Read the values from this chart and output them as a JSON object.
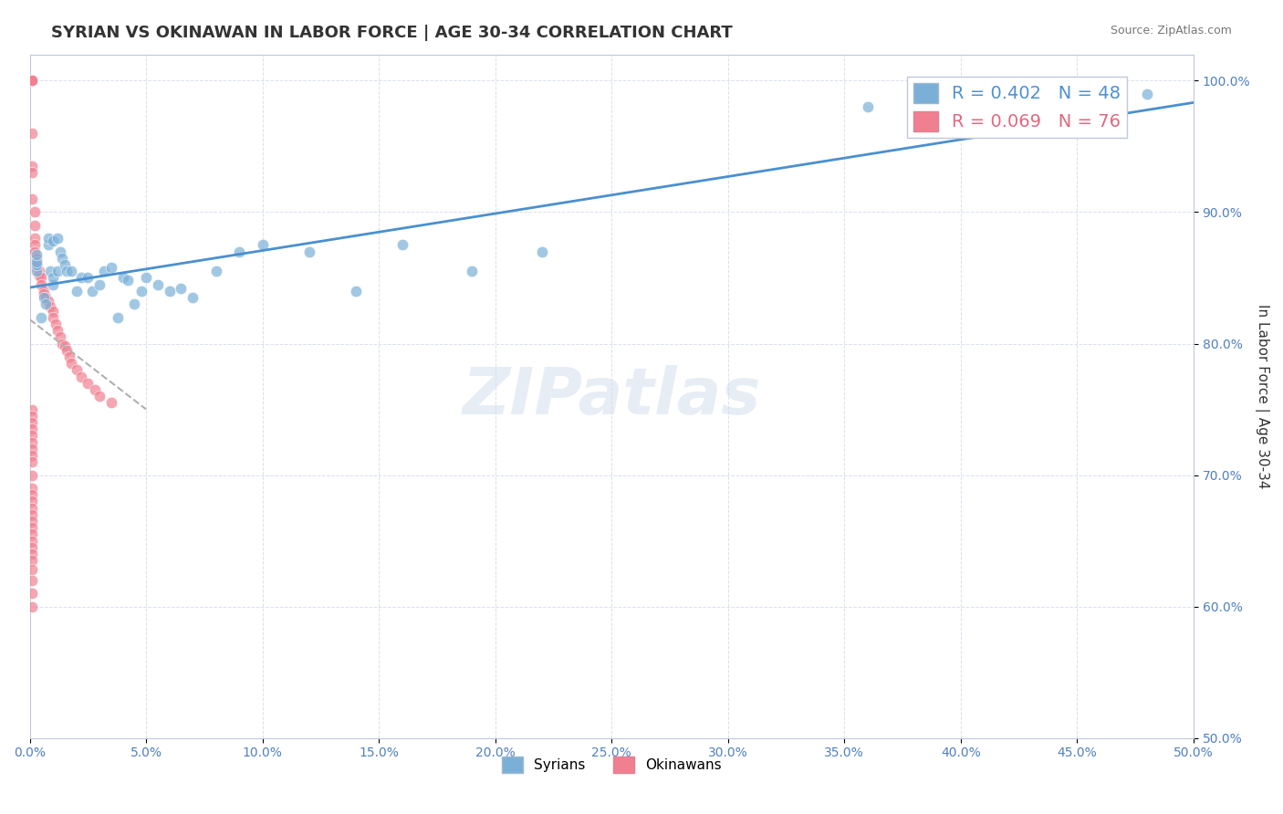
{
  "title": "SYRIAN VS OKINAWAN IN LABOR FORCE | AGE 30-34 CORRELATION CHART",
  "source_text": "Source: ZipAtlas.com",
  "xlabel": "",
  "ylabel": "In Labor Force | Age 30-34",
  "xlim": [
    0.0,
    0.5
  ],
  "ylim": [
    0.5,
    1.02
  ],
  "xticks": [
    0.0,
    0.05,
    0.1,
    0.15,
    0.2,
    0.25,
    0.3,
    0.35,
    0.4,
    0.45,
    0.5
  ],
  "yticks": [
    0.5,
    0.6,
    0.7,
    0.8,
    0.9,
    1.0
  ],
  "ytick_labels": [
    "50.0%",
    "60.0%",
    "70.0%",
    "80.0%",
    "90.0%",
    "100.0%"
  ],
  "xtick_labels": [
    "0.0%",
    "5.0%",
    "10.0%",
    "15.0%",
    "20.0%",
    "25.0%",
    "30.0%",
    "35.0%",
    "40.0%",
    "45.0%",
    "50.0%"
  ],
  "legend_items": [
    {
      "label": "R = 0.402   N = 48",
      "color": "#a8c8e8"
    },
    {
      "label": "R = 0.069   N = 76",
      "color": "#f4a0b0"
    }
  ],
  "syrian_color": "#7ab0d8",
  "okinawan_color": "#f08090",
  "trend_syrian_color": "#4a90d0",
  "trend_okinawan_color": "#c0c0c0",
  "watermark": "ZIPatlas",
  "r_syrian": 0.402,
  "n_syrian": 48,
  "r_okinawan": 0.069,
  "n_okinawan": 76,
  "syrian_x": [
    0.003,
    0.003,
    0.003,
    0.003,
    0.005,
    0.006,
    0.007,
    0.008,
    0.008,
    0.009,
    0.01,
    0.01,
    0.01,
    0.012,
    0.012,
    0.013,
    0.014,
    0.015,
    0.016,
    0.018,
    0.02,
    0.022,
    0.025,
    0.027,
    0.03,
    0.032,
    0.035,
    0.038,
    0.04,
    0.042,
    0.045,
    0.048,
    0.05,
    0.055,
    0.06,
    0.065,
    0.07,
    0.08,
    0.09,
    0.1,
    0.12,
    0.14,
    0.16,
    0.19,
    0.22,
    0.36,
    0.42,
    0.48
  ],
  "syrian_y": [
    0.855,
    0.86,
    0.862,
    0.868,
    0.82,
    0.835,
    0.83,
    0.875,
    0.88,
    0.855,
    0.845,
    0.85,
    0.878,
    0.855,
    0.88,
    0.87,
    0.865,
    0.86,
    0.855,
    0.855,
    0.84,
    0.85,
    0.85,
    0.84,
    0.845,
    0.855,
    0.858,
    0.82,
    0.85,
    0.848,
    0.83,
    0.84,
    0.85,
    0.845,
    0.84,
    0.842,
    0.835,
    0.855,
    0.87,
    0.875,
    0.87,
    0.84,
    0.875,
    0.855,
    0.87,
    0.98,
    0.99,
    0.99
  ],
  "okinawan_x": [
    0.001,
    0.001,
    0.001,
    0.001,
    0.001,
    0.001,
    0.001,
    0.001,
    0.001,
    0.001,
    0.001,
    0.001,
    0.001,
    0.001,
    0.001,
    0.001,
    0.001,
    0.002,
    0.002,
    0.002,
    0.002,
    0.002,
    0.003,
    0.003,
    0.003,
    0.004,
    0.004,
    0.005,
    0.005,
    0.006,
    0.006,
    0.007,
    0.008,
    0.009,
    0.01,
    0.01,
    0.011,
    0.012,
    0.013,
    0.014,
    0.015,
    0.016,
    0.017,
    0.018,
    0.02,
    0.022,
    0.025,
    0.028,
    0.03,
    0.035,
    0.001,
    0.001,
    0.001,
    0.001,
    0.001,
    0.001,
    0.001,
    0.001,
    0.001,
    0.001,
    0.001,
    0.001,
    0.001,
    0.001,
    0.001,
    0.001,
    0.001,
    0.001,
    0.001,
    0.001,
    0.001,
    0.001,
    0.001,
    0.001,
    0.001,
    0.001
  ],
  "okinawan_y": [
    1.0,
    1.0,
    1.0,
    1.0,
    1.0,
    1.0,
    1.0,
    1.0,
    1.0,
    1.0,
    1.0,
    1.0,
    1.0,
    0.96,
    0.935,
    0.93,
    0.91,
    0.9,
    0.89,
    0.88,
    0.875,
    0.87,
    0.865,
    0.86,
    0.858,
    0.855,
    0.852,
    0.85,
    0.845,
    0.84,
    0.838,
    0.835,
    0.832,
    0.828,
    0.825,
    0.82,
    0.815,
    0.81,
    0.805,
    0.8,
    0.798,
    0.795,
    0.79,
    0.785,
    0.78,
    0.775,
    0.77,
    0.765,
    0.76,
    0.755,
    0.75,
    0.745,
    0.74,
    0.735,
    0.73,
    0.725,
    0.72,
    0.715,
    0.71,
    0.7,
    0.69,
    0.685,
    0.68,
    0.675,
    0.67,
    0.665,
    0.66,
    0.655,
    0.65,
    0.645,
    0.64,
    0.635,
    0.628,
    0.62,
    0.61,
    0.6
  ]
}
